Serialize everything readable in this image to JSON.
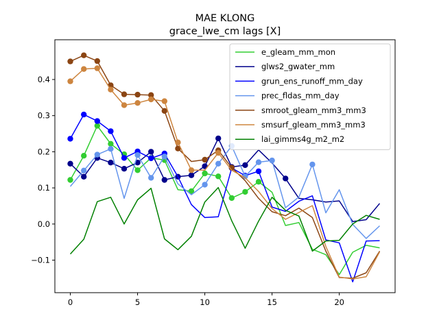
{
  "chart_data": {
    "type": "line",
    "title": "MAE KLONG",
    "subtitle": "grace_lwe_cm lags [X]",
    "xlabel": "",
    "ylabel": "",
    "xlim": [
      -1.15,
      24.15
    ],
    "ylim": [
      -0.19,
      0.51
    ],
    "xticks": [
      0,
      5,
      10,
      15,
      20
    ],
    "yticks": [
      -0.1,
      0.0,
      0.1,
      0.2,
      0.3,
      0.4
    ],
    "ytick_labels": [
      "−0.1",
      "0.0",
      "0.1",
      "0.2",
      "0.3",
      "0.4"
    ],
    "grid": false,
    "legend_position": "top-right",
    "x": [
      0,
      1,
      2,
      3,
      4,
      5,
      6,
      7,
      8,
      9,
      10,
      11,
      12,
      13,
      14,
      15,
      16,
      17,
      18,
      19,
      20,
      21,
      22,
      23
    ],
    "series": [
      {
        "name": "e_gleam_mm_mon",
        "color": "#32cd32",
        "values": [
          0.122,
          0.189,
          0.272,
          0.222,
          0.193,
          0.149,
          0.183,
          0.177,
          0.095,
          0.091,
          0.14,
          0.132,
          0.072,
          0.089,
          0.117,
          0.088,
          -0.004,
          0.004,
          -0.07,
          -0.085,
          -0.14,
          -0.078,
          -0.059,
          -0.066
        ],
        "markers": [
          0,
          1,
          2,
          3,
          4,
          5,
          6,
          7,
          9,
          10,
          11,
          12,
          13,
          14
        ]
      },
      {
        "name": "glws2_gwater_mm",
        "color": "#00008b",
        "values": [
          0.167,
          0.131,
          0.183,
          0.17,
          0.153,
          0.17,
          0.2,
          0.122,
          0.131,
          0.135,
          0.16,
          0.237,
          0.158,
          0.163,
          0.205,
          0.169,
          0.126,
          0.071,
          0.067,
          0.061,
          0.064,
          0.007,
          0.012,
          0.057
        ],
        "markers": [
          0,
          1,
          2,
          3,
          4,
          5,
          6,
          7,
          8,
          9,
          10,
          11,
          12,
          13,
          16
        ]
      },
      {
        "name": "grun_ens_runoff_mm_day",
        "color": "#0000ff",
        "values": [
          0.236,
          0.303,
          0.285,
          0.257,
          0.183,
          0.201,
          0.182,
          0.195,
          0.131,
          0.054,
          0.018,
          0.02,
          0.155,
          0.134,
          0.146,
          0.047,
          0.035,
          0.063,
          0.078,
          -0.044,
          -0.052,
          -0.16,
          -0.047,
          -0.046
        ],
        "markers": [
          0,
          1,
          2,
          3,
          4,
          5,
          6,
          7,
          12,
          13,
          14
        ]
      },
      {
        "name": "prec_fldas_mm_day",
        "color": "#6495ed",
        "values": [
          0.104,
          0.148,
          0.192,
          0.208,
          0.071,
          0.191,
          0.128,
          0.187,
          0.111,
          0.081,
          0.109,
          0.167,
          0.216,
          0.132,
          0.171,
          0.176,
          0.045,
          0.075,
          0.165,
          0.031,
          0.095,
          -0.001,
          -0.04,
          -0.005
        ],
        "markers": [
          1,
          2,
          3,
          5,
          6,
          7,
          10,
          11,
          12,
          13,
          14,
          15,
          18
        ]
      },
      {
        "name": "smroot_gleam_mm3_mm3",
        "color": "#8b4513",
        "values": [
          0.45,
          0.467,
          0.451,
          0.384,
          0.359,
          0.358,
          0.357,
          0.313,
          0.209,
          0.173,
          0.178,
          0.204,
          0.156,
          0.12,
          0.071,
          0.034,
          0.023,
          0.044,
          0.018,
          -0.075,
          -0.148,
          -0.15,
          -0.135,
          -0.075
        ],
        "markers": [
          0,
          1,
          2,
          3,
          4,
          5,
          6,
          7,
          8,
          10,
          11,
          12
        ]
      },
      {
        "name": "smsurf_gleam_mm3_mm3",
        "color": "#cd853f",
        "values": [
          0.395,
          0.429,
          0.431,
          0.372,
          0.329,
          0.335,
          0.345,
          0.34,
          0.226,
          0.149,
          0.149,
          0.197,
          0.149,
          0.128,
          0.09,
          0.043,
          0.013,
          0.032,
          0.051,
          -0.062,
          -0.147,
          -0.152,
          -0.146,
          -0.077
        ],
        "markers": [
          0,
          1,
          2,
          3,
          4,
          5,
          6,
          7,
          8,
          9,
          11
        ]
      },
      {
        "name": "lai_gimms4g_m2_m2",
        "color": "#008000",
        "values": [
          -0.083,
          -0.042,
          0.062,
          0.074,
          0.0,
          0.067,
          0.099,
          -0.041,
          -0.071,
          -0.034,
          0.061,
          0.101,
          0.009,
          -0.067,
          0.008,
          0.074,
          0.038,
          0.022,
          -0.075,
          -0.047,
          -0.045,
          0.0,
          0.024,
          0.013
        ],
        "markers": []
      }
    ]
  }
}
